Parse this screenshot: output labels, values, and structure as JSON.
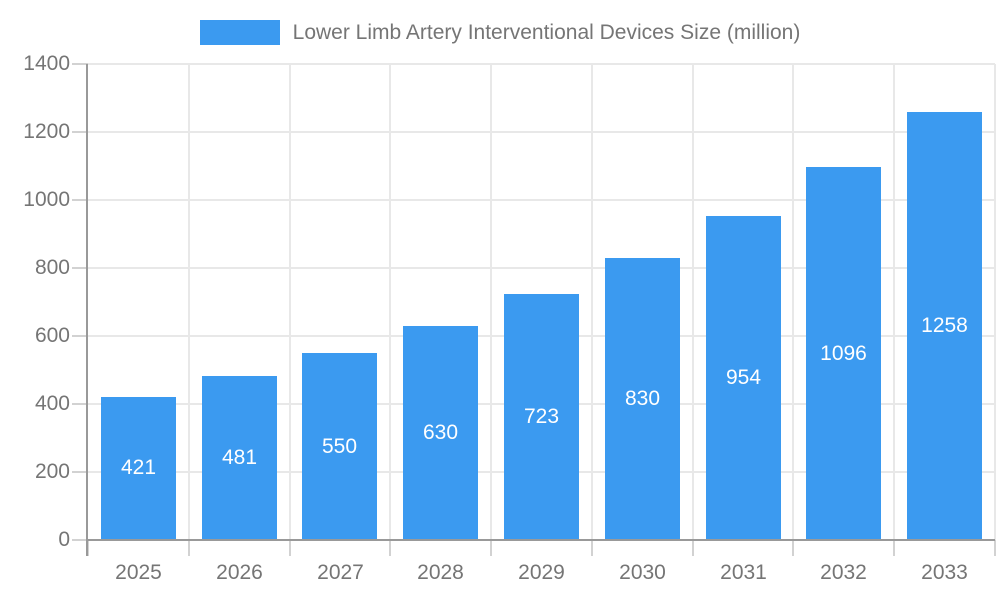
{
  "chart_data": {
    "type": "bar",
    "title": "Lower Limb Artery Interventional Devices Size (million)",
    "categories": [
      "2025",
      "2026",
      "2027",
      "2028",
      "2029",
      "2030",
      "2031",
      "2032",
      "2033"
    ],
    "values": [
      421,
      481,
      550,
      630,
      723,
      830,
      954,
      1096,
      1258
    ],
    "xlabel": "",
    "ylabel": "",
    "ylim": [
      0,
      1400
    ],
    "ytick_step": 200,
    "ytick_labels": [
      "0",
      "200",
      "400",
      "600",
      "800",
      "1000",
      "1200",
      "1400"
    ],
    "grid": true,
    "legend_position": "top",
    "value_labels": "inside-center"
  },
  "colors": {
    "bar": "#3b9af0",
    "bar_value_text": "#ffffff",
    "axis_text": "#757575",
    "legend_text": "#757575",
    "axis_line": "#999999",
    "gridline": "#e8e8e8",
    "tick": "#d2d2d2",
    "background": "#ffffff"
  }
}
